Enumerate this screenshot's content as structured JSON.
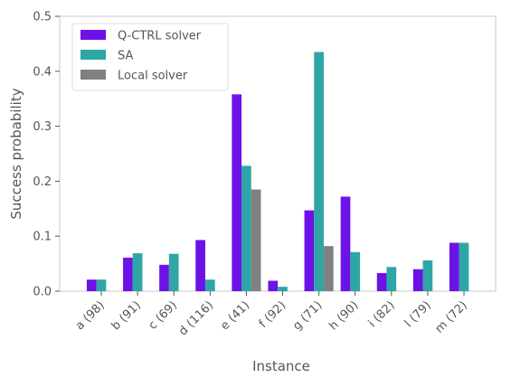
{
  "chart_data": {
    "type": "bar",
    "x_label": "Instance",
    "y_label": "Success probability",
    "categories": [
      "a (98)",
      "b (91)",
      "c (69)",
      "d (116)",
      "e (41)",
      "f (92)",
      "g (71)",
      "h (90)",
      "i (82)",
      "l (79)",
      "m (72)"
    ],
    "series": [
      {
        "name": "Q-CTRL solver",
        "color": "#6c12e6",
        "values": [
          0.021,
          0.061,
          0.048,
          0.093,
          0.358,
          0.019,
          0.147,
          0.172,
          0.033,
          0.04,
          0.088
        ]
      },
      {
        "name": "SA",
        "color": "#2ea6a6",
        "values": [
          0.021,
          0.069,
          0.068,
          0.021,
          0.228,
          0.008,
          0.435,
          0.071,
          0.044,
          0.056,
          0.088
        ]
      },
      {
        "name": "Local solver",
        "color": "#808080",
        "values": [
          null,
          null,
          null,
          null,
          0.185,
          null,
          0.082,
          null,
          null,
          null,
          null
        ]
      }
    ],
    "ylim": [
      0,
      0.5
    ],
    "yticks": [
      {
        "value": 0,
        "label": "0.0"
      },
      0.1,
      0.2,
      0.3,
      0.4,
      0.5
    ],
    "legend": "upper left"
  }
}
